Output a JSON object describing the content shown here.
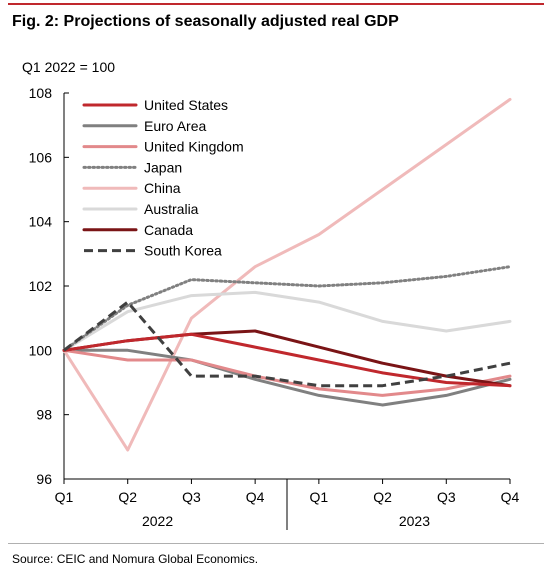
{
  "figure": {
    "title": "Fig. 2: Projections of seasonally adjusted real GDP",
    "source": "Source: CEIC and Nomura Global Economics."
  },
  "chart_data": {
    "type": "line",
    "title": "Fig. 2: Projections of seasonally adjusted real GDP",
    "ylabel": "Q1 2022 = 100",
    "xlabel": "",
    "ylim": [
      96,
      108
    ],
    "yticks": [
      96,
      98,
      100,
      102,
      104,
      106,
      108
    ],
    "categories": [
      "Q1",
      "Q2",
      "Q3",
      "Q4",
      "Q1",
      "Q2",
      "Q3",
      "Q4"
    ],
    "year_groups": [
      {
        "label": "2022",
        "quarters": [
          "Q1",
          "Q2",
          "Q3",
          "Q4"
        ]
      },
      {
        "label": "2023",
        "quarters": [
          "Q1",
          "Q2",
          "Q3",
          "Q4"
        ]
      }
    ],
    "grid": false,
    "legend": "top-left",
    "series": [
      {
        "name": "United States",
        "color": "#c0282d",
        "dash": "solid",
        "values": [
          100,
          100.3,
          100.5,
          100.1,
          99.7,
          99.3,
          99.0,
          98.9
        ]
      },
      {
        "name": "Euro Area",
        "color": "#808080",
        "dash": "solid",
        "values": [
          100,
          100.0,
          99.7,
          99.1,
          98.6,
          98.3,
          98.6,
          99.1
        ]
      },
      {
        "name": "United Kingdom",
        "color": "#e2898b",
        "dash": "solid",
        "values": [
          100,
          99.7,
          99.7,
          99.2,
          98.8,
          98.6,
          98.8,
          99.2
        ]
      },
      {
        "name": "Japan",
        "color": "#808080",
        "dash": "dotted",
        "values": [
          100,
          101.4,
          102.2,
          102.1,
          102.0,
          102.1,
          102.3,
          102.6
        ]
      },
      {
        "name": "China",
        "color": "#f0baba",
        "dash": "solid",
        "values": [
          100,
          96.9,
          101.0,
          102.6,
          103.6,
          105.0,
          106.4,
          107.8
        ]
      },
      {
        "name": "Australia",
        "color": "#d9d9d9",
        "dash": "solid",
        "values": [
          100,
          101.2,
          101.7,
          101.8,
          101.5,
          100.9,
          100.6,
          100.9
        ]
      },
      {
        "name": "Canada",
        "color": "#7a1416",
        "dash": "solid",
        "values": [
          100,
          100.3,
          100.5,
          100.6,
          100.1,
          99.6,
          99.2,
          98.9
        ]
      },
      {
        "name": "South Korea",
        "color": "#404040",
        "dash": "dashed",
        "values": [
          100,
          101.5,
          99.2,
          99.2,
          98.9,
          98.9,
          99.2,
          99.6
        ]
      }
    ]
  }
}
